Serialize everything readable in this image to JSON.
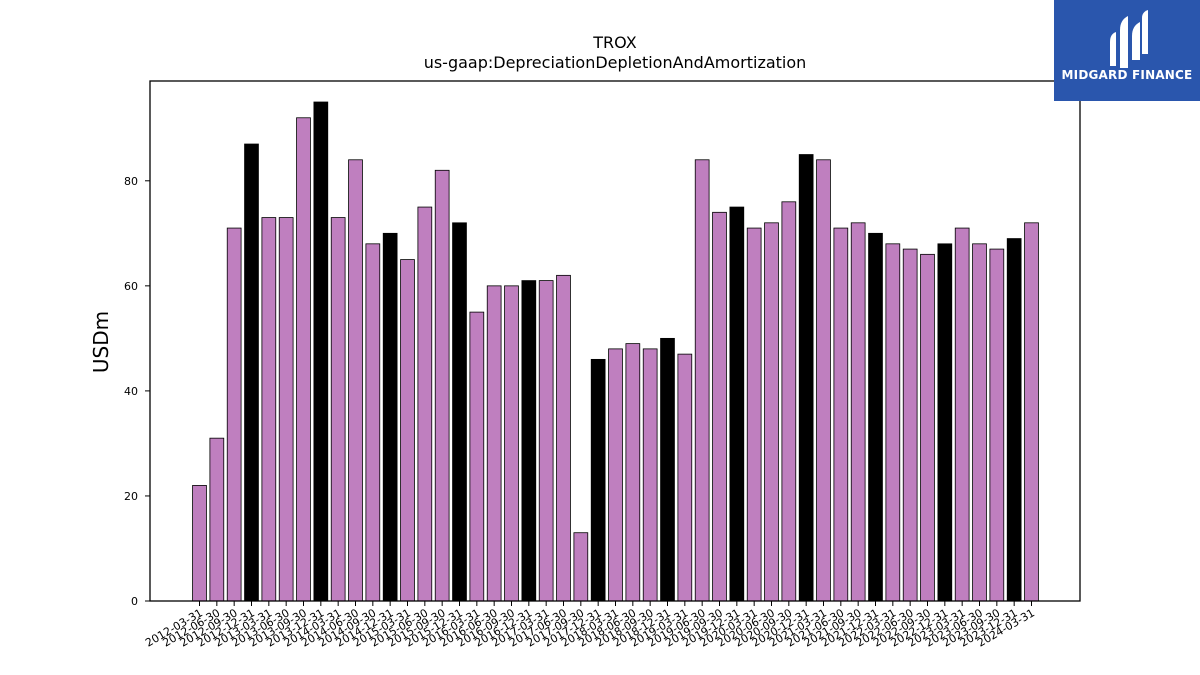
{
  "brand": {
    "name": "MIDGARD FINANCE",
    "color": "#2a56ad"
  },
  "chart_data": {
    "type": "bar",
    "title": "TROX",
    "subtitle": "us-gaap:DepreciationDepletionAndAmortization",
    "xlabel": "",
    "ylabel": "USDm",
    "ylim": [
      0,
      99
    ],
    "yticks": [
      0,
      20,
      40,
      60,
      80
    ],
    "grid": false,
    "colors": {
      "quarter": "#bf7fbf",
      "year_end": "#000000",
      "edge": "#000000"
    },
    "categories": [
      "2012-03-31",
      "2012-06-30",
      "2012-09-30",
      "2012-12-31",
      "2013-03-31",
      "2013-06-30",
      "2013-09-30",
      "2013-12-31",
      "2014-03-31",
      "2014-06-30",
      "2014-09-30",
      "2014-12-31",
      "2015-03-31",
      "2015-06-30",
      "2015-09-30",
      "2015-12-31",
      "2016-03-31",
      "2016-06-30",
      "2016-09-30",
      "2016-12-31",
      "2017-03-31",
      "2017-06-30",
      "2017-09-30",
      "2017-12-31",
      "2018-03-31",
      "2018-06-30",
      "2018-09-30",
      "2018-12-31",
      "2019-03-31",
      "2019-06-30",
      "2019-09-30",
      "2019-12-31",
      "2020-03-31",
      "2020-06-30",
      "2020-09-30",
      "2020-12-31",
      "2021-03-31",
      "2021-06-30",
      "2021-09-30",
      "2021-12-31",
      "2022-03-31",
      "2022-06-30",
      "2022-09-30",
      "2022-12-31",
      "2023-03-31",
      "2023-06-30",
      "2023-09-30",
      "2023-12-31",
      "2024-03-31"
    ],
    "values": [
      22,
      31,
      71,
      87,
      73,
      73,
      92,
      95,
      73,
      84,
      68,
      70,
      65,
      75,
      82,
      72,
      55,
      60,
      60,
      61,
      61,
      62,
      13,
      46,
      48,
      49,
      48,
      50,
      47,
      84,
      74,
      75,
      71,
      72,
      76,
      85,
      84,
      71,
      72,
      70,
      68,
      67,
      66,
      68,
      71,
      68,
      67,
      69,
      72
    ]
  }
}
